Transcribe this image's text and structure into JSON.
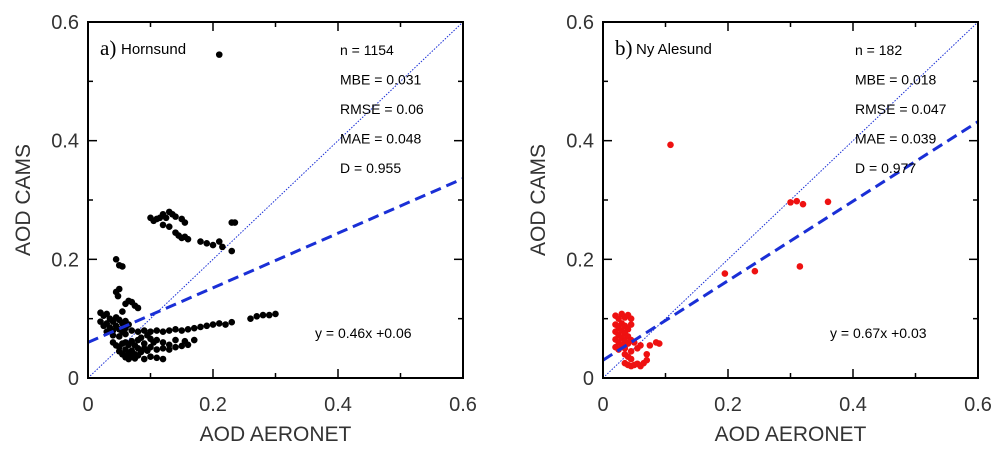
{
  "chart_data": [
    {
      "type": "scatter",
      "panel_label": "a)",
      "site": "Hornsund",
      "xlabel": "AOD AERONET",
      "ylabel": "AOD CAMS",
      "xlim": [
        0,
        0.6
      ],
      "ylim": [
        0,
        0.6
      ],
      "xticks": [
        "0",
        "0.2",
        "0.4",
        "0.6"
      ],
      "yticks": [
        "0",
        "0.2",
        "0.4",
        "0.6"
      ],
      "point_color": "#000000",
      "line_color": "#1a2fd6",
      "stats": [
        "n = 1154",
        "MBE = 0.031",
        "RMSE = 0.06",
        "MAE = 0.048",
        "D = 0.955"
      ],
      "equation": "y = 0.46x +0.06",
      "fit": {
        "slope": 0.46,
        "intercept": 0.06
      },
      "points": [
        [
          0.21,
          0.545
        ],
        [
          0.1,
          0.27
        ],
        [
          0.105,
          0.265
        ],
        [
          0.11,
          0.268
        ],
        [
          0.115,
          0.27
        ],
        [
          0.12,
          0.276
        ],
        [
          0.125,
          0.27
        ],
        [
          0.13,
          0.28
        ],
        [
          0.135,
          0.276
        ],
        [
          0.14,
          0.272
        ],
        [
          0.15,
          0.268
        ],
        [
          0.155,
          0.262
        ],
        [
          0.12,
          0.258
        ],
        [
          0.13,
          0.255
        ],
        [
          0.14,
          0.245
        ],
        [
          0.145,
          0.24
        ],
        [
          0.15,
          0.236
        ],
        [
          0.155,
          0.238
        ],
        [
          0.16,
          0.234
        ],
        [
          0.18,
          0.23
        ],
        [
          0.19,
          0.227
        ],
        [
          0.2,
          0.224
        ],
        [
          0.21,
          0.23
        ],
        [
          0.215,
          0.221
        ],
        [
          0.23,
          0.262
        ],
        [
          0.235,
          0.262
        ],
        [
          0.23,
          0.214
        ],
        [
          0.045,
          0.2
        ],
        [
          0.05,
          0.19
        ],
        [
          0.055,
          0.188
        ],
        [
          0.045,
          0.145
        ],
        [
          0.048,
          0.138
        ],
        [
          0.05,
          0.15
        ],
        [
          0.06,
          0.125
        ],
        [
          0.065,
          0.13
        ],
        [
          0.07,
          0.128
        ],
        [
          0.075,
          0.122
        ],
        [
          0.08,
          0.118
        ],
        [
          0.055,
          0.112
        ],
        [
          0.02,
          0.11
        ],
        [
          0.025,
          0.105
        ],
        [
          0.03,
          0.108
        ],
        [
          0.035,
          0.1
        ],
        [
          0.04,
          0.095
        ],
        [
          0.045,
          0.102
        ],
        [
          0.05,
          0.098
        ],
        [
          0.055,
          0.092
        ],
        [
          0.06,
          0.096
        ],
        [
          0.065,
          0.09
        ],
        [
          0.02,
          0.095
        ],
        [
          0.025,
          0.088
        ],
        [
          0.03,
          0.092
        ],
        [
          0.035,
          0.085
        ],
        [
          0.04,
          0.08
        ],
        [
          0.045,
          0.088
        ],
        [
          0.05,
          0.082
        ],
        [
          0.055,
          0.078
        ],
        [
          0.06,
          0.084
        ],
        [
          0.03,
          0.078
        ],
        [
          0.04,
          0.072
        ],
        [
          0.05,
          0.07
        ],
        [
          0.06,
          0.074
        ],
        [
          0.07,
          0.08
        ],
        [
          0.08,
          0.078
        ],
        [
          0.09,
          0.08
        ],
        [
          0.1,
          0.078
        ],
        [
          0.11,
          0.08
        ],
        [
          0.12,
          0.078
        ],
        [
          0.13,
          0.08
        ],
        [
          0.14,
          0.082
        ],
        [
          0.15,
          0.08
        ],
        [
          0.16,
          0.082
        ],
        [
          0.17,
          0.084
        ],
        [
          0.18,
          0.086
        ],
        [
          0.19,
          0.088
        ],
        [
          0.2,
          0.09
        ],
        [
          0.21,
          0.092
        ],
        [
          0.22,
          0.09
        ],
        [
          0.23,
          0.094
        ],
        [
          0.26,
          0.1
        ],
        [
          0.27,
          0.104
        ],
        [
          0.28,
          0.106
        ],
        [
          0.29,
          0.106
        ],
        [
          0.3,
          0.108
        ],
        [
          0.04,
          0.06
        ],
        [
          0.045,
          0.055
        ],
        [
          0.05,
          0.052
        ],
        [
          0.055,
          0.058
        ],
        [
          0.06,
          0.06
        ],
        [
          0.065,
          0.056
        ],
        [
          0.07,
          0.062
        ],
        [
          0.075,
          0.055
        ],
        [
          0.08,
          0.064
        ],
        [
          0.085,
          0.068
        ],
        [
          0.09,
          0.058
        ],
        [
          0.095,
          0.072
        ],
        [
          0.1,
          0.066
        ],
        [
          0.105,
          0.06
        ],
        [
          0.11,
          0.064
        ],
        [
          0.12,
          0.06
        ],
        [
          0.13,
          0.056
        ],
        [
          0.14,
          0.064
        ],
        [
          0.155,
          0.062
        ],
        [
          0.17,
          0.064
        ],
        [
          0.05,
          0.045
        ],
        [
          0.055,
          0.04
        ],
        [
          0.06,
          0.048
        ],
        [
          0.065,
          0.042
        ],
        [
          0.07,
          0.046
        ],
        [
          0.075,
          0.04
        ],
        [
          0.08,
          0.05
        ],
        [
          0.085,
          0.044
        ],
        [
          0.09,
          0.05
        ],
        [
          0.095,
          0.046
        ],
        [
          0.1,
          0.052
        ],
        [
          0.11,
          0.048
        ],
        [
          0.12,
          0.05
        ],
        [
          0.13,
          0.048
        ],
        [
          0.14,
          0.052
        ],
        [
          0.15,
          0.054
        ],
        [
          0.16,
          0.056
        ],
        [
          0.06,
          0.035
        ],
        [
          0.065,
          0.032
        ],
        [
          0.07,
          0.036
        ],
        [
          0.075,
          0.033
        ],
        [
          0.08,
          0.038
        ],
        [
          0.09,
          0.032
        ],
        [
          0.1,
          0.036
        ],
        [
          0.11,
          0.034
        ],
        [
          0.12,
          0.032
        ]
      ]
    },
    {
      "type": "scatter",
      "panel_label": "b)",
      "site": "Ny Alesund",
      "xlabel": "AOD AERONET",
      "ylabel": "AOD CAMS",
      "xlim": [
        0,
        0.6
      ],
      "ylim": [
        0,
        0.6
      ],
      "xticks": [
        "0",
        "0.2",
        "0.4",
        "0.6"
      ],
      "yticks": [
        "0",
        "0.2",
        "0.4",
        "0.6"
      ],
      "point_color": "#ee1111",
      "line_color": "#1a2fd6",
      "stats": [
        "n = 182",
        "MBE = 0.018",
        "RMSE = 0.047",
        "MAE = 0.039",
        "D = 0.977"
      ],
      "equation": "y = 0.67x +0.03",
      "fit": {
        "slope": 0.67,
        "intercept": 0.03
      },
      "points": [
        [
          0.108,
          0.393
        ],
        [
          0.195,
          0.176
        ],
        [
          0.243,
          0.18
        ],
        [
          0.3,
          0.296
        ],
        [
          0.31,
          0.298
        ],
        [
          0.32,
          0.293
        ],
        [
          0.36,
          0.297
        ],
        [
          0.315,
          0.188
        ],
        [
          0.02,
          0.105
        ],
        [
          0.025,
          0.1
        ],
        [
          0.03,
          0.108
        ],
        [
          0.035,
          0.102
        ],
        [
          0.04,
          0.106
        ],
        [
          0.045,
          0.1
        ],
        [
          0.02,
          0.09
        ],
        [
          0.025,
          0.085
        ],
        [
          0.03,
          0.092
        ],
        [
          0.035,
          0.088
        ],
        [
          0.04,
          0.082
        ],
        [
          0.045,
          0.09
        ],
        [
          0.02,
          0.078
        ],
        [
          0.025,
          0.072
        ],
        [
          0.03,
          0.08
        ],
        [
          0.035,
          0.075
        ],
        [
          0.04,
          0.07
        ],
        [
          0.02,
          0.065
        ],
        [
          0.025,
          0.06
        ],
        [
          0.03,
          0.068
        ],
        [
          0.035,
          0.062
        ],
        [
          0.04,
          0.058
        ],
        [
          0.045,
          0.064
        ],
        [
          0.05,
          0.06
        ],
        [
          0.02,
          0.052
        ],
        [
          0.025,
          0.048
        ],
        [
          0.03,
          0.055
        ],
        [
          0.035,
          0.05
        ],
        [
          0.045,
          0.045
        ],
        [
          0.055,
          0.05
        ],
        [
          0.06,
          0.055
        ],
        [
          0.035,
          0.04
        ],
        [
          0.04,
          0.036
        ],
        [
          0.045,
          0.032
        ],
        [
          0.035,
          0.025
        ],
        [
          0.04,
          0.022
        ],
        [
          0.045,
          0.02
        ],
        [
          0.05,
          0.022
        ],
        [
          0.055,
          0.024
        ],
        [
          0.06,
          0.02
        ],
        [
          0.065,
          0.025
        ],
        [
          0.07,
          0.03
        ],
        [
          0.07,
          0.04
        ],
        [
          0.075,
          0.055
        ],
        [
          0.085,
          0.06
        ],
        [
          0.09,
          0.058
        ]
      ]
    }
  ]
}
